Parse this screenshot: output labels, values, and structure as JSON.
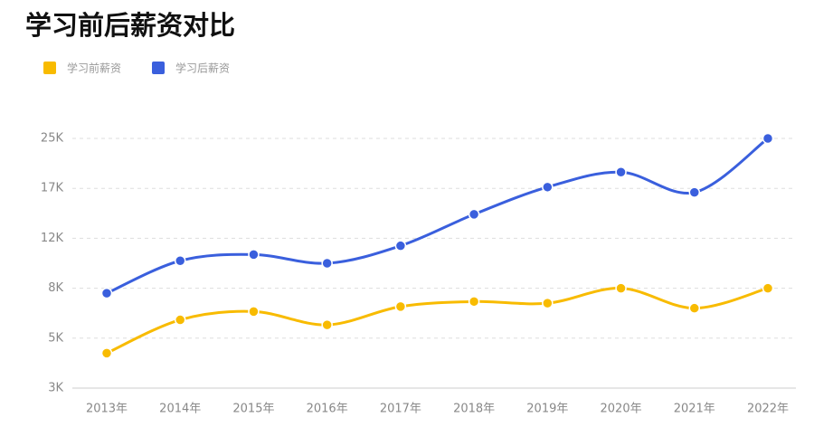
{
  "chart_data": {
    "type": "line",
    "title": "学习前后薪资对比",
    "categories": [
      "2013年",
      "2014年",
      "2015年",
      "2016年",
      "2017年",
      "2018年",
      "2019年",
      "2020年",
      "2021年",
      "2022年"
    ],
    "series": [
      {
        "name": "学习前薪资",
        "color": "#f8bb00",
        "values": [
          4400,
          6100,
          6600,
          5800,
          6900,
          7200,
          7100,
          8000,
          6800,
          8000
        ]
      },
      {
        "name": "学习后薪资",
        "color": "#3a5fdd",
        "values": [
          7700,
          10200,
          10700,
          10000,
          11400,
          14400,
          17200,
          19600,
          16600,
          25000
        ]
      }
    ],
    "ylim": [
      3000,
      25000
    ],
    "yticks": [
      {
        "value": 3000,
        "label": "3K"
      },
      {
        "value": 5000,
        "label": "5K"
      },
      {
        "value": 8000,
        "label": "8K"
      },
      {
        "value": 12000,
        "label": "12K"
      },
      {
        "value": 17000,
        "label": "17K"
      },
      {
        "value": 25000,
        "label": "25K"
      }
    ],
    "yscale": "piecewise",
    "grid": true,
    "smooth": true,
    "legend": "top-left"
  }
}
